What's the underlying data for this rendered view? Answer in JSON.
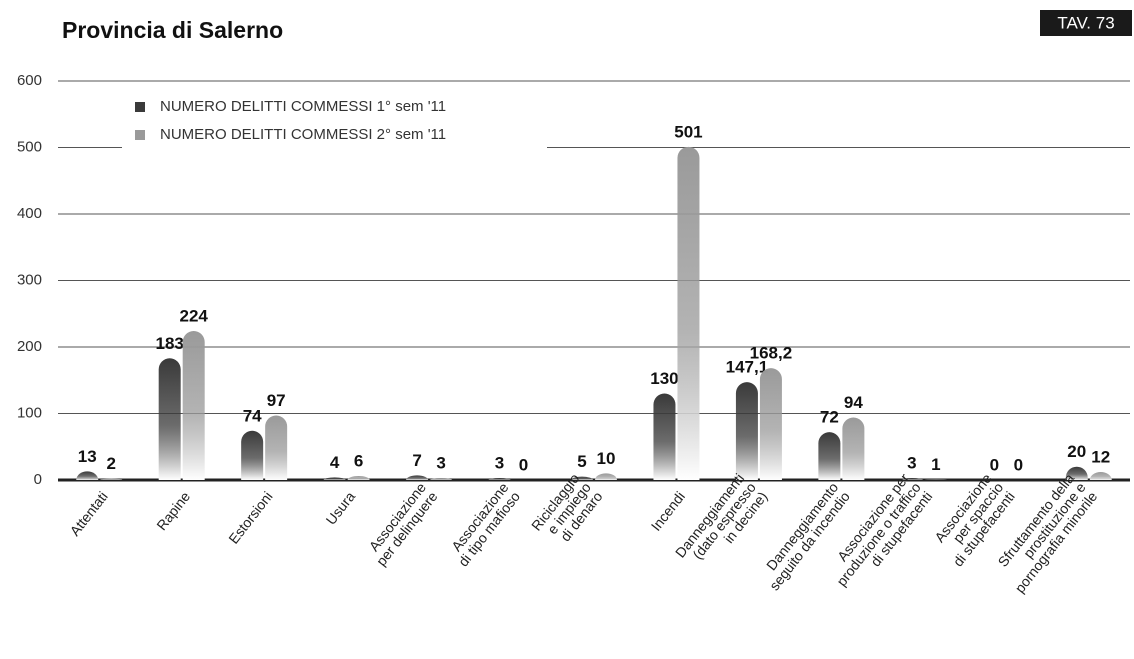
{
  "chart_data": {
    "type": "bar",
    "title": "Provincia di Salerno",
    "badge": "TAV. 73",
    "categories": [
      "Attentati",
      "Rapine",
      "Estorsioni",
      "Usura",
      "Associazione\nper delinquere",
      "Associazione\ndi tipo mafioso",
      "Riciclaggio\ne impiego\ndi denaro",
      "Incendi",
      "Danneggiamenti\n(dato espresso\nin decine)",
      "Danneggiamento\nseguito da incendio",
      "Associazione per\nproduzione o traffico\ndi stupefacenti",
      "Associazione\nper spaccio\ndi stupefacenti",
      "Sfruttamento della\nprostituzione e\npornografia minorile"
    ],
    "series": [
      {
        "name": "NUMERO DELITTI COMMESSI 1° sem '11",
        "color": "#3a3a3a",
        "values": [
          13,
          183,
          74,
          4,
          7,
          3,
          5,
          130,
          147.1,
          72,
          3,
          0,
          20
        ],
        "value_labels": [
          "13",
          "183",
          "74",
          "4",
          "7",
          "3",
          "5",
          "130",
          "147,1",
          "72",
          "3",
          "0",
          "20"
        ]
      },
      {
        "name": "NUMERO DELITTI COMMESSI 2° sem '11",
        "color": "#9a9a9a",
        "values": [
          2,
          224,
          97,
          6,
          3,
          0,
          10,
          501,
          168.2,
          94,
          1,
          0,
          12
        ],
        "value_labels": [
          "2",
          "224",
          "97",
          "6",
          "3",
          "0",
          "10",
          "501",
          "168,2",
          "94",
          "1",
          "0",
          "12"
        ]
      }
    ],
    "ylim": [
      0,
      600
    ],
    "yticks": [
      0,
      100,
      200,
      300,
      400,
      500,
      600
    ],
    "grid": true
  }
}
